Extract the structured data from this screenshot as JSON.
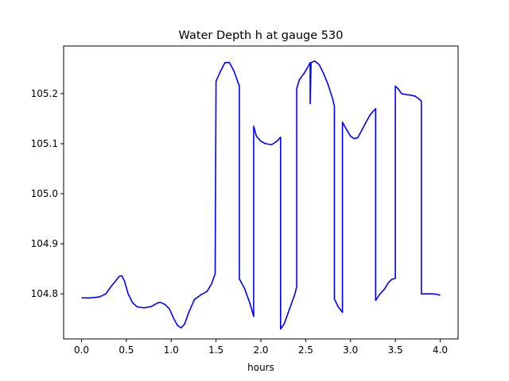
{
  "chart_data": {
    "type": "line",
    "title": "Water Depth h at gauge 530",
    "xlabel": "hours",
    "ylabel": "",
    "xlim": [
      -0.2,
      4.2
    ],
    "ylim": [
      104.71,
      105.295
    ],
    "xticks": [
      0.0,
      0.5,
      1.0,
      1.5,
      2.0,
      2.5,
      3.0,
      3.5,
      4.0
    ],
    "xtick_labels": [
      "0.0",
      "0.5",
      "1.0",
      "1.5",
      "2.0",
      "2.5",
      "3.0",
      "3.5",
      "4.0"
    ],
    "yticks": [
      104.8,
      104.9,
      105.0,
      105.1,
      105.2
    ],
    "ytick_labels": [
      "104.8",
      "104.9",
      "105.0",
      "105.1",
      "105.2"
    ],
    "grid": false,
    "series": [
      {
        "color": "#0000ff",
        "points": [
          [
            0.0,
            104.792
          ],
          [
            0.1,
            104.792
          ],
          [
            0.2,
            104.794
          ],
          [
            0.27,
            104.8
          ],
          [
            0.33,
            104.815
          ],
          [
            0.38,
            104.826
          ],
          [
            0.42,
            104.835
          ],
          [
            0.45,
            104.836
          ],
          [
            0.48,
            104.825
          ],
          [
            0.52,
            104.8
          ],
          [
            0.57,
            104.782
          ],
          [
            0.62,
            104.774
          ],
          [
            0.7,
            104.772
          ],
          [
            0.78,
            104.775
          ],
          [
            0.85,
            104.782
          ],
          [
            0.88,
            104.783
          ],
          [
            0.93,
            104.779
          ],
          [
            0.98,
            104.77
          ],
          [
            1.03,
            104.75
          ],
          [
            1.07,
            104.737
          ],
          [
            1.11,
            104.732
          ],
          [
            1.15,
            104.74
          ],
          [
            1.2,
            104.765
          ],
          [
            1.26,
            104.789
          ],
          [
            1.33,
            104.798
          ],
          [
            1.4,
            104.805
          ],
          [
            1.45,
            104.82
          ],
          [
            1.49,
            104.84
          ],
          [
            1.5,
            105.225
          ],
          [
            1.55,
            105.245
          ],
          [
            1.6,
            105.262
          ],
          [
            1.65,
            105.262
          ],
          [
            1.7,
            105.245
          ],
          [
            1.76,
            105.215
          ],
          [
            1.76,
            104.83
          ],
          [
            1.82,
            104.81
          ],
          [
            1.88,
            104.78
          ],
          [
            1.92,
            104.755
          ],
          [
            1.92,
            105.135
          ],
          [
            1.95,
            105.115
          ],
          [
            2.0,
            105.105
          ],
          [
            2.05,
            105.1
          ],
          [
            2.12,
            105.098
          ],
          [
            2.18,
            105.105
          ],
          [
            2.22,
            105.113
          ],
          [
            2.22,
            104.73
          ],
          [
            2.26,
            104.74
          ],
          [
            2.32,
            104.77
          ],
          [
            2.38,
            104.8
          ],
          [
            2.4,
            104.815
          ],
          [
            2.4,
            105.21
          ],
          [
            2.43,
            105.228
          ],
          [
            2.48,
            105.24
          ],
          [
            2.53,
            105.255
          ],
          [
            2.55,
            105.262
          ],
          [
            2.55,
            105.18
          ],
          [
            2.56,
            105.262
          ],
          [
            2.6,
            105.265
          ],
          [
            2.65,
            105.258
          ],
          [
            2.7,
            105.24
          ],
          [
            2.75,
            105.218
          ],
          [
            2.8,
            105.19
          ],
          [
            2.82,
            105.175
          ],
          [
            2.82,
            104.79
          ],
          [
            2.86,
            104.775
          ],
          [
            2.91,
            104.763
          ],
          [
            2.91,
            105.143
          ],
          [
            2.95,
            105.13
          ],
          [
            3.0,
            105.115
          ],
          [
            3.04,
            105.11
          ],
          [
            3.08,
            105.112
          ],
          [
            3.12,
            105.125
          ],
          [
            3.17,
            105.142
          ],
          [
            3.22,
            105.158
          ],
          [
            3.28,
            105.17
          ],
          [
            3.28,
            104.787
          ],
          [
            3.33,
            104.8
          ],
          [
            3.38,
            104.81
          ],
          [
            3.42,
            104.822
          ],
          [
            3.46,
            104.829
          ],
          [
            3.5,
            104.831
          ],
          [
            3.5,
            105.215
          ],
          [
            3.53,
            105.21
          ],
          [
            3.57,
            105.2
          ],
          [
            3.62,
            105.198
          ],
          [
            3.67,
            105.197
          ],
          [
            3.72,
            105.195
          ],
          [
            3.76,
            105.19
          ],
          [
            3.79,
            105.185
          ],
          [
            3.79,
            104.8
          ],
          [
            3.85,
            104.8
          ],
          [
            3.92,
            104.8
          ],
          [
            3.97,
            104.799
          ],
          [
            4.0,
            104.797
          ]
        ]
      }
    ]
  }
}
